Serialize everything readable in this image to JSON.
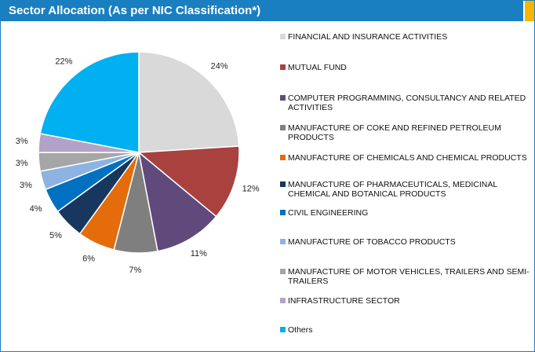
{
  "chart_data": {
    "type": "pie",
    "title": "Sector Allocation (As per NIC Classification*)",
    "categories": [
      "FINANCIAL AND INSURANCE ACTIVITIES",
      "MUTUAL FUND",
      "COMPUTER PROGRAMMING, CONSULTANCY AND RELATED ACTIVITIES",
      "MANUFACTURE OF COKE AND REFINED PETROLEUM PRODUCTS",
      "MANUFACTURE OF CHEMICALS AND CHEMICAL PRODUCTS",
      "MANUFACTURE OF PHARMACEUTICALS, MEDICINAL CHEMICAL AND BOTANICAL PRODUCTS",
      "CIVIL ENGINEERING",
      "MANUFACTURE OF TOBACCO PRODUCTS",
      "MANUFACTURE OF MOTOR VEHICLES, TRAILERS AND SEMI-TRAILERS",
      "INFRASTRUCTURE SECTOR",
      "Others"
    ],
    "values": [
      24,
      12,
      11,
      7,
      6,
      5,
      4,
      3,
      3,
      3,
      22
    ],
    "value_labels": [
      "24%",
      "12%",
      "11%",
      "7%",
      "6%",
      "5%",
      "4%",
      "3%",
      "3%",
      "3%",
      "22%"
    ],
    "colors": [
      "#d9d9d9",
      "#a9413e",
      "#604a7b",
      "#7f7f7f",
      "#e46c0a",
      "#17375e",
      "#0070c0",
      "#8db3e2",
      "#a6a6a6",
      "#b3a2c7",
      "#00b0f0"
    ]
  }
}
